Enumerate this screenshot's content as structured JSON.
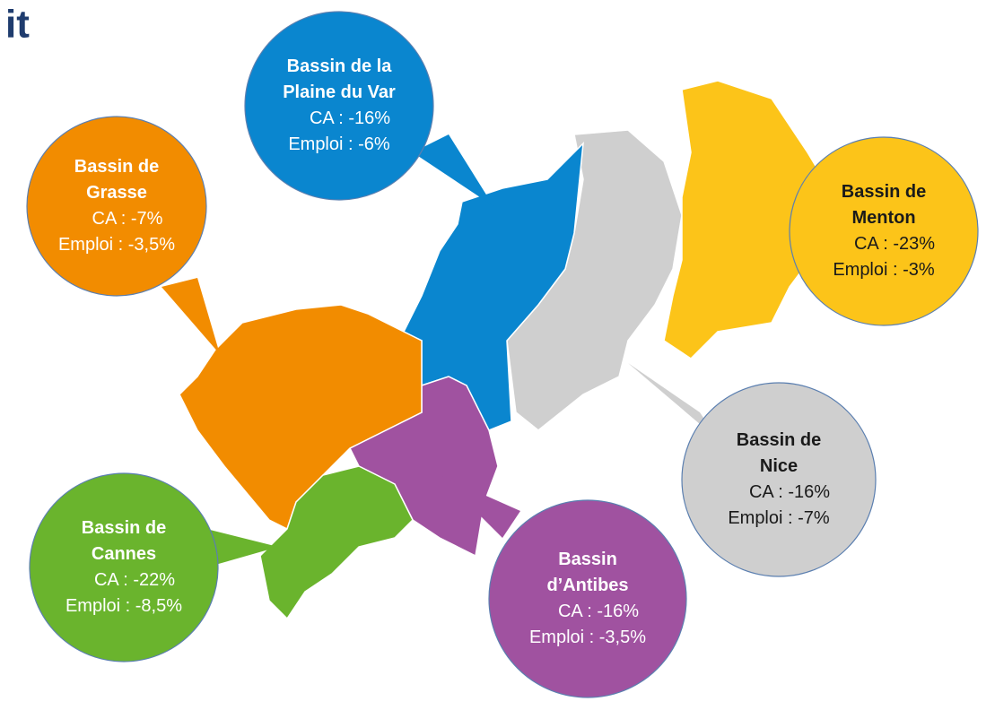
{
  "title": "it",
  "bubbles": [
    {
      "name": [
        "Bassin de la",
        "Plaine du Var"
      ],
      "ca": "CA : -16%",
      "emploi": "Emploi : -6%"
    },
    {
      "name": [
        "Bassin de",
        "Grasse"
      ],
      "ca": "CA : -7%",
      "emploi": "Emploi : -3,5%"
    },
    {
      "name": [
        "Bassin de",
        "Menton"
      ],
      "ca": "CA : -23%",
      "emploi": "Emploi : -3%"
    },
    {
      "name": [
        "Bassin de",
        "Nice"
      ],
      "ca": "CA : -16%",
      "emploi": "Emploi : -7%"
    },
    {
      "name": [
        "Bassin de",
        "Cannes"
      ],
      "ca": "CA : -22%",
      "emploi": "Emploi : -8,5%"
    },
    {
      "name": [
        "Bassin",
        "d’Antibes"
      ],
      "ca": "CA : -16%",
      "emploi": "Emploi : -3,5%"
    }
  ]
}
